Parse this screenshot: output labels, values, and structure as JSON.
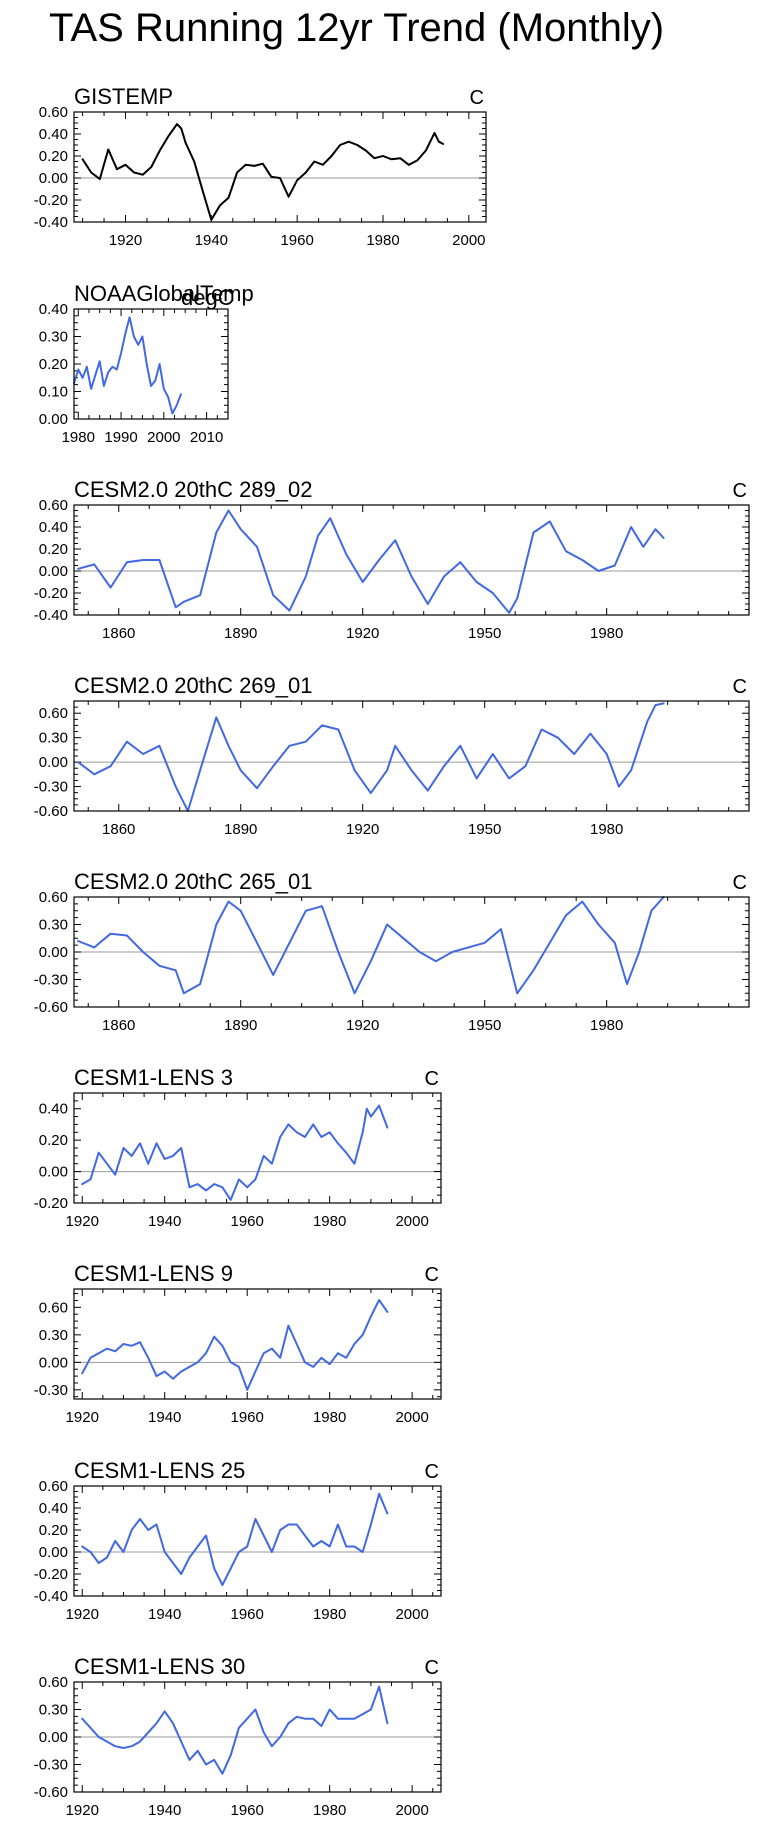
{
  "page_title": "TAS Running 12yr Trend (Monthly)",
  "colors": {
    "observed": "#000000",
    "model": "#4169e1",
    "zero": "#9a9a9a"
  },
  "chart_data": [
    {
      "type": "line",
      "title": "GISTEMP",
      "unit": "C",
      "color": "#000000",
      "xlim": [
        1908,
        2004
      ],
      "ylim": [
        -0.4,
        0.6
      ],
      "xticks": [
        1920,
        1940,
        1960,
        1980,
        2000
      ],
      "yticks": [
        -0.4,
        -0.2,
        0.0,
        0.2,
        0.4,
        0.6
      ],
      "ydec": 2,
      "series": [
        {
          "name": "GISTEMP",
          "x": [
            1910,
            1912,
            1914,
            1916,
            1918,
            1920,
            1922,
            1924,
            1926,
            1928,
            1930,
            1932,
            1933,
            1934,
            1936,
            1938,
            1940,
            1942,
            1944,
            1946,
            1948,
            1950,
            1952,
            1954,
            1956,
            1958,
            1960,
            1962,
            1964,
            1966,
            1968,
            1970,
            1972,
            1974,
            1976,
            1978,
            1980,
            1982,
            1984,
            1986,
            1988,
            1990,
            1991,
            1992,
            1993,
            1994
          ],
          "y": [
            0.17,
            0.05,
            -0.01,
            0.26,
            0.08,
            0.12,
            0.05,
            0.03,
            0.1,
            0.25,
            0.38,
            0.49,
            0.45,
            0.32,
            0.15,
            -0.12,
            -0.38,
            -0.25,
            -0.18,
            0.05,
            0.12,
            0.11,
            0.13,
            0.01,
            0.0,
            -0.17,
            -0.02,
            0.05,
            0.15,
            0.12,
            0.2,
            0.3,
            0.33,
            0.3,
            0.25,
            0.18,
            0.2,
            0.17,
            0.18,
            0.12,
            0.16,
            0.25,
            0.33,
            0.41,
            0.33,
            0.31
          ]
        }
      ]
    },
    {
      "type": "line",
      "title": "NOAAGlobalTemp",
      "overlay_title": "degC",
      "unit": "",
      "color": "#4169e1",
      "xlim": [
        1979,
        2015
      ],
      "ylim": [
        0.0,
        0.4
      ],
      "xticks": [
        1980,
        1990,
        2000,
        2010
      ],
      "yticks": [
        0.0,
        0.1,
        0.2,
        0.3,
        0.4
      ],
      "ydec": 2,
      "series": [
        {
          "name": "NOAAGlobalTemp",
          "x": [
            1979,
            1980,
            1981,
            1982,
            1983,
            1984,
            1985,
            1986,
            1987,
            1988,
            1989,
            1990,
            1991,
            1992,
            1993,
            1994,
            1995,
            1996,
            1997,
            1998,
            1999,
            2000,
            2001,
            2002,
            2003,
            2004
          ],
          "y": [
            0.13,
            0.18,
            0.15,
            0.19,
            0.11,
            0.16,
            0.21,
            0.12,
            0.17,
            0.19,
            0.18,
            0.24,
            0.31,
            0.37,
            0.3,
            0.27,
            0.3,
            0.2,
            0.12,
            0.14,
            0.2,
            0.11,
            0.08,
            0.02,
            0.05,
            0.09
          ]
        }
      ]
    },
    {
      "type": "line",
      "title": "CESM2.0 20thC 289_02",
      "unit": "C",
      "color": "#4169e1",
      "xlim": [
        1849,
        2015
      ],
      "ylim": [
        -0.4,
        0.6
      ],
      "xticks": [
        1860,
        1890,
        1920,
        1950,
        1980
      ],
      "yticks": [
        -0.4,
        -0.2,
        0.0,
        0.2,
        0.4,
        0.6
      ],
      "ydec": 2,
      "series": [
        {
          "name": "289_02",
          "x": [
            1850,
            1854,
            1858,
            1862,
            1866,
            1870,
            1874,
            1876,
            1880,
            1884,
            1887,
            1890,
            1894,
            1898,
            1902,
            1906,
            1909,
            1912,
            1916,
            1920,
            1924,
            1928,
            1932,
            1936,
            1940,
            1944,
            1948,
            1952,
            1956,
            1958,
            1962,
            1966,
            1970,
            1974,
            1978,
            1982,
            1986,
            1989,
            1992,
            1994
          ],
          "y": [
            0.02,
            0.06,
            -0.15,
            0.08,
            0.1,
            0.1,
            -0.33,
            -0.28,
            -0.22,
            0.35,
            0.55,
            0.38,
            0.22,
            -0.22,
            -0.36,
            -0.05,
            0.32,
            0.48,
            0.15,
            -0.1,
            0.1,
            0.28,
            -0.05,
            -0.3,
            -0.05,
            0.08,
            -0.1,
            -0.2,
            -0.38,
            -0.25,
            0.35,
            0.45,
            0.18,
            0.1,
            0.0,
            0.05,
            0.4,
            0.22,
            0.38,
            0.3
          ]
        }
      ]
    },
    {
      "type": "line",
      "title": "CESM2.0 20thC 269_01",
      "unit": "C",
      "color": "#4169e1",
      "xlim": [
        1849,
        2015
      ],
      "ylim": [
        -0.6,
        0.75
      ],
      "xticks": [
        1860,
        1890,
        1920,
        1950,
        1980
      ],
      "yticks": [
        -0.6,
        -0.3,
        0.0,
        0.3,
        0.6
      ],
      "ydec": 2,
      "series": [
        {
          "name": "269_01",
          "x": [
            1850,
            1854,
            1858,
            1862,
            1866,
            1870,
            1874,
            1877,
            1880,
            1884,
            1887,
            1890,
            1894,
            1898,
            1902,
            1906,
            1910,
            1914,
            1918,
            1922,
            1926,
            1928,
            1932,
            1936,
            1940,
            1944,
            1948,
            1952,
            1956,
            1960,
            1964,
            1968,
            1972,
            1976,
            1980,
            1983,
            1986,
            1990,
            1992,
            1994
          ],
          "y": [
            0.0,
            -0.15,
            -0.05,
            0.25,
            0.1,
            0.2,
            -0.3,
            -0.6,
            -0.1,
            0.55,
            0.2,
            -0.1,
            -0.32,
            -0.05,
            0.2,
            0.25,
            0.45,
            0.4,
            -0.1,
            -0.38,
            -0.1,
            0.2,
            -0.1,
            -0.35,
            -0.05,
            0.2,
            -0.2,
            0.1,
            -0.2,
            -0.05,
            0.4,
            0.3,
            0.1,
            0.35,
            0.1,
            -0.3,
            -0.1,
            0.5,
            0.7,
            0.72
          ]
        }
      ]
    },
    {
      "type": "line",
      "title": "CESM2.0 20thC 265_01",
      "unit": "C",
      "color": "#4169e1",
      "xlim": [
        1849,
        2015
      ],
      "ylim": [
        -0.6,
        0.6
      ],
      "xticks": [
        1860,
        1890,
        1920,
        1950,
        1980
      ],
      "yticks": [
        -0.6,
        -0.3,
        0.0,
        0.3,
        0.6
      ],
      "ydec": 2,
      "series": [
        {
          "name": "265_01",
          "x": [
            1850,
            1854,
            1858,
            1862,
            1866,
            1870,
            1874,
            1876,
            1880,
            1884,
            1887,
            1890,
            1894,
            1898,
            1902,
            1906,
            1910,
            1914,
            1918,
            1922,
            1926,
            1930,
            1934,
            1938,
            1942,
            1946,
            1950,
            1954,
            1958,
            1962,
            1966,
            1970,
            1974,
            1978,
            1982,
            1985,
            1988,
            1991,
            1994
          ],
          "y": [
            0.12,
            0.05,
            0.2,
            0.18,
            0.0,
            -0.15,
            -0.2,
            -0.45,
            -0.35,
            0.3,
            0.55,
            0.45,
            0.1,
            -0.25,
            0.1,
            0.45,
            0.5,
            0.0,
            -0.45,
            -0.1,
            0.3,
            0.15,
            0.0,
            -0.1,
            0.0,
            0.05,
            0.1,
            0.25,
            -0.45,
            -0.2,
            0.1,
            0.4,
            0.55,
            0.3,
            0.1,
            -0.35,
            0.0,
            0.45,
            0.6
          ]
        }
      ]
    },
    {
      "type": "line",
      "title": "CESM1-LENS 3",
      "unit": "C",
      "color": "#4169e1",
      "xlim": [
        1918,
        2007
      ],
      "ylim": [
        -0.2,
        0.5
      ],
      "xticks": [
        1920,
        1940,
        1960,
        1980,
        2000
      ],
      "yticks": [
        -0.2,
        0.0,
        0.2,
        0.4
      ],
      "ydec": 2,
      "series": [
        {
          "name": "LENS 3",
          "x": [
            1920,
            1922,
            1924,
            1926,
            1928,
            1930,
            1932,
            1934,
            1936,
            1938,
            1940,
            1942,
            1944,
            1946,
            1948,
            1950,
            1952,
            1954,
            1956,
            1958,
            1960,
            1962,
            1964,
            1966,
            1968,
            1970,
            1972,
            1974,
            1976,
            1978,
            1980,
            1982,
            1984,
            1986,
            1988,
            1989,
            1990,
            1992,
            1994
          ],
          "y": [
            -0.08,
            -0.05,
            0.12,
            0.05,
            -0.02,
            0.15,
            0.1,
            0.18,
            0.05,
            0.18,
            0.08,
            0.1,
            0.15,
            -0.1,
            -0.08,
            -0.12,
            -0.08,
            -0.1,
            -0.18,
            -0.05,
            -0.1,
            -0.05,
            0.1,
            0.05,
            0.22,
            0.3,
            0.25,
            0.22,
            0.3,
            0.22,
            0.25,
            0.18,
            0.12,
            0.05,
            0.25,
            0.4,
            0.35,
            0.42,
            0.28
          ]
        }
      ]
    },
    {
      "type": "line",
      "title": "CESM1-LENS 9",
      "unit": "C",
      "color": "#4169e1",
      "xlim": [
        1918,
        2007
      ],
      "ylim": [
        -0.4,
        0.8
      ],
      "xticks": [
        1920,
        1940,
        1960,
        1980,
        2000
      ],
      "yticks": [
        -0.3,
        0.0,
        0.3,
        0.6
      ],
      "ydec": 2,
      "series": [
        {
          "name": "LENS 9",
          "x": [
            1920,
            1922,
            1924,
            1926,
            1928,
            1930,
            1932,
            1934,
            1936,
            1938,
            1940,
            1942,
            1944,
            1946,
            1948,
            1950,
            1952,
            1954,
            1956,
            1958,
            1960,
            1962,
            1964,
            1966,
            1968,
            1970,
            1972,
            1974,
            1976,
            1978,
            1980,
            1982,
            1984,
            1986,
            1988,
            1990,
            1992,
            1994
          ],
          "y": [
            -0.12,
            0.05,
            0.1,
            0.15,
            0.12,
            0.2,
            0.18,
            0.22,
            0.05,
            -0.15,
            -0.1,
            -0.18,
            -0.1,
            -0.05,
            0.0,
            0.1,
            0.28,
            0.18,
            0.0,
            -0.05,
            -0.3,
            -0.1,
            0.1,
            0.15,
            0.05,
            0.4,
            0.2,
            0.0,
            -0.05,
            0.05,
            -0.02,
            0.1,
            0.05,
            0.2,
            0.3,
            0.5,
            0.68,
            0.55
          ]
        }
      ]
    },
    {
      "type": "line",
      "title": "CESM1-LENS 25",
      "unit": "C",
      "color": "#4169e1",
      "xlim": [
        1918,
        2007
      ],
      "ylim": [
        -0.4,
        0.6
      ],
      "xticks": [
        1920,
        1940,
        1960,
        1980,
        2000
      ],
      "yticks": [
        -0.4,
        -0.2,
        0.0,
        0.2,
        0.4,
        0.6
      ],
      "ydec": 2,
      "series": [
        {
          "name": "LENS 25",
          "x": [
            1920,
            1922,
            1924,
            1926,
            1928,
            1930,
            1932,
            1934,
            1936,
            1938,
            1940,
            1942,
            1944,
            1946,
            1948,
            1950,
            1952,
            1954,
            1956,
            1958,
            1960,
            1962,
            1964,
            1966,
            1968,
            1970,
            1972,
            1974,
            1976,
            1978,
            1980,
            1982,
            1984,
            1986,
            1988,
            1990,
            1992,
            1994
          ],
          "y": [
            0.05,
            0.0,
            -0.1,
            -0.05,
            0.1,
            0.0,
            0.2,
            0.3,
            0.2,
            0.25,
            0.0,
            -0.1,
            -0.2,
            -0.05,
            0.05,
            0.15,
            -0.15,
            -0.3,
            -0.15,
            0.0,
            0.05,
            0.3,
            0.15,
            0.0,
            0.2,
            0.25,
            0.25,
            0.15,
            0.05,
            0.1,
            0.05,
            0.25,
            0.05,
            0.05,
            0.0,
            0.25,
            0.53,
            0.35
          ]
        }
      ]
    },
    {
      "type": "line",
      "title": "CESM1-LENS 30",
      "unit": "C",
      "color": "#4169e1",
      "xlim": [
        1918,
        2007
      ],
      "ylim": [
        -0.6,
        0.6
      ],
      "xticks": [
        1920,
        1940,
        1960,
        1980,
        2000
      ],
      "yticks": [
        -0.6,
        -0.3,
        0.0,
        0.3,
        0.6
      ],
      "ydec": 2,
      "series": [
        {
          "name": "LENS 30",
          "x": [
            1920,
            1922,
            1924,
            1926,
            1928,
            1930,
            1932,
            1934,
            1936,
            1938,
            1940,
            1942,
            1944,
            1946,
            1948,
            1950,
            1952,
            1954,
            1956,
            1958,
            1960,
            1962,
            1964,
            1966,
            1968,
            1970,
            1972,
            1974,
            1976,
            1978,
            1980,
            1982,
            1984,
            1986,
            1988,
            1990,
            1992,
            1994
          ],
          "y": [
            0.2,
            0.1,
            0.0,
            -0.05,
            -0.1,
            -0.12,
            -0.1,
            -0.05,
            0.05,
            0.15,
            0.28,
            0.15,
            -0.05,
            -0.25,
            -0.15,
            -0.3,
            -0.25,
            -0.4,
            -0.2,
            0.1,
            0.2,
            0.3,
            0.05,
            -0.1,
            0.0,
            0.15,
            0.22,
            0.2,
            0.2,
            0.12,
            0.3,
            0.2,
            0.2,
            0.2,
            0.25,
            0.3,
            0.55,
            0.15
          ]
        }
      ]
    }
  ]
}
